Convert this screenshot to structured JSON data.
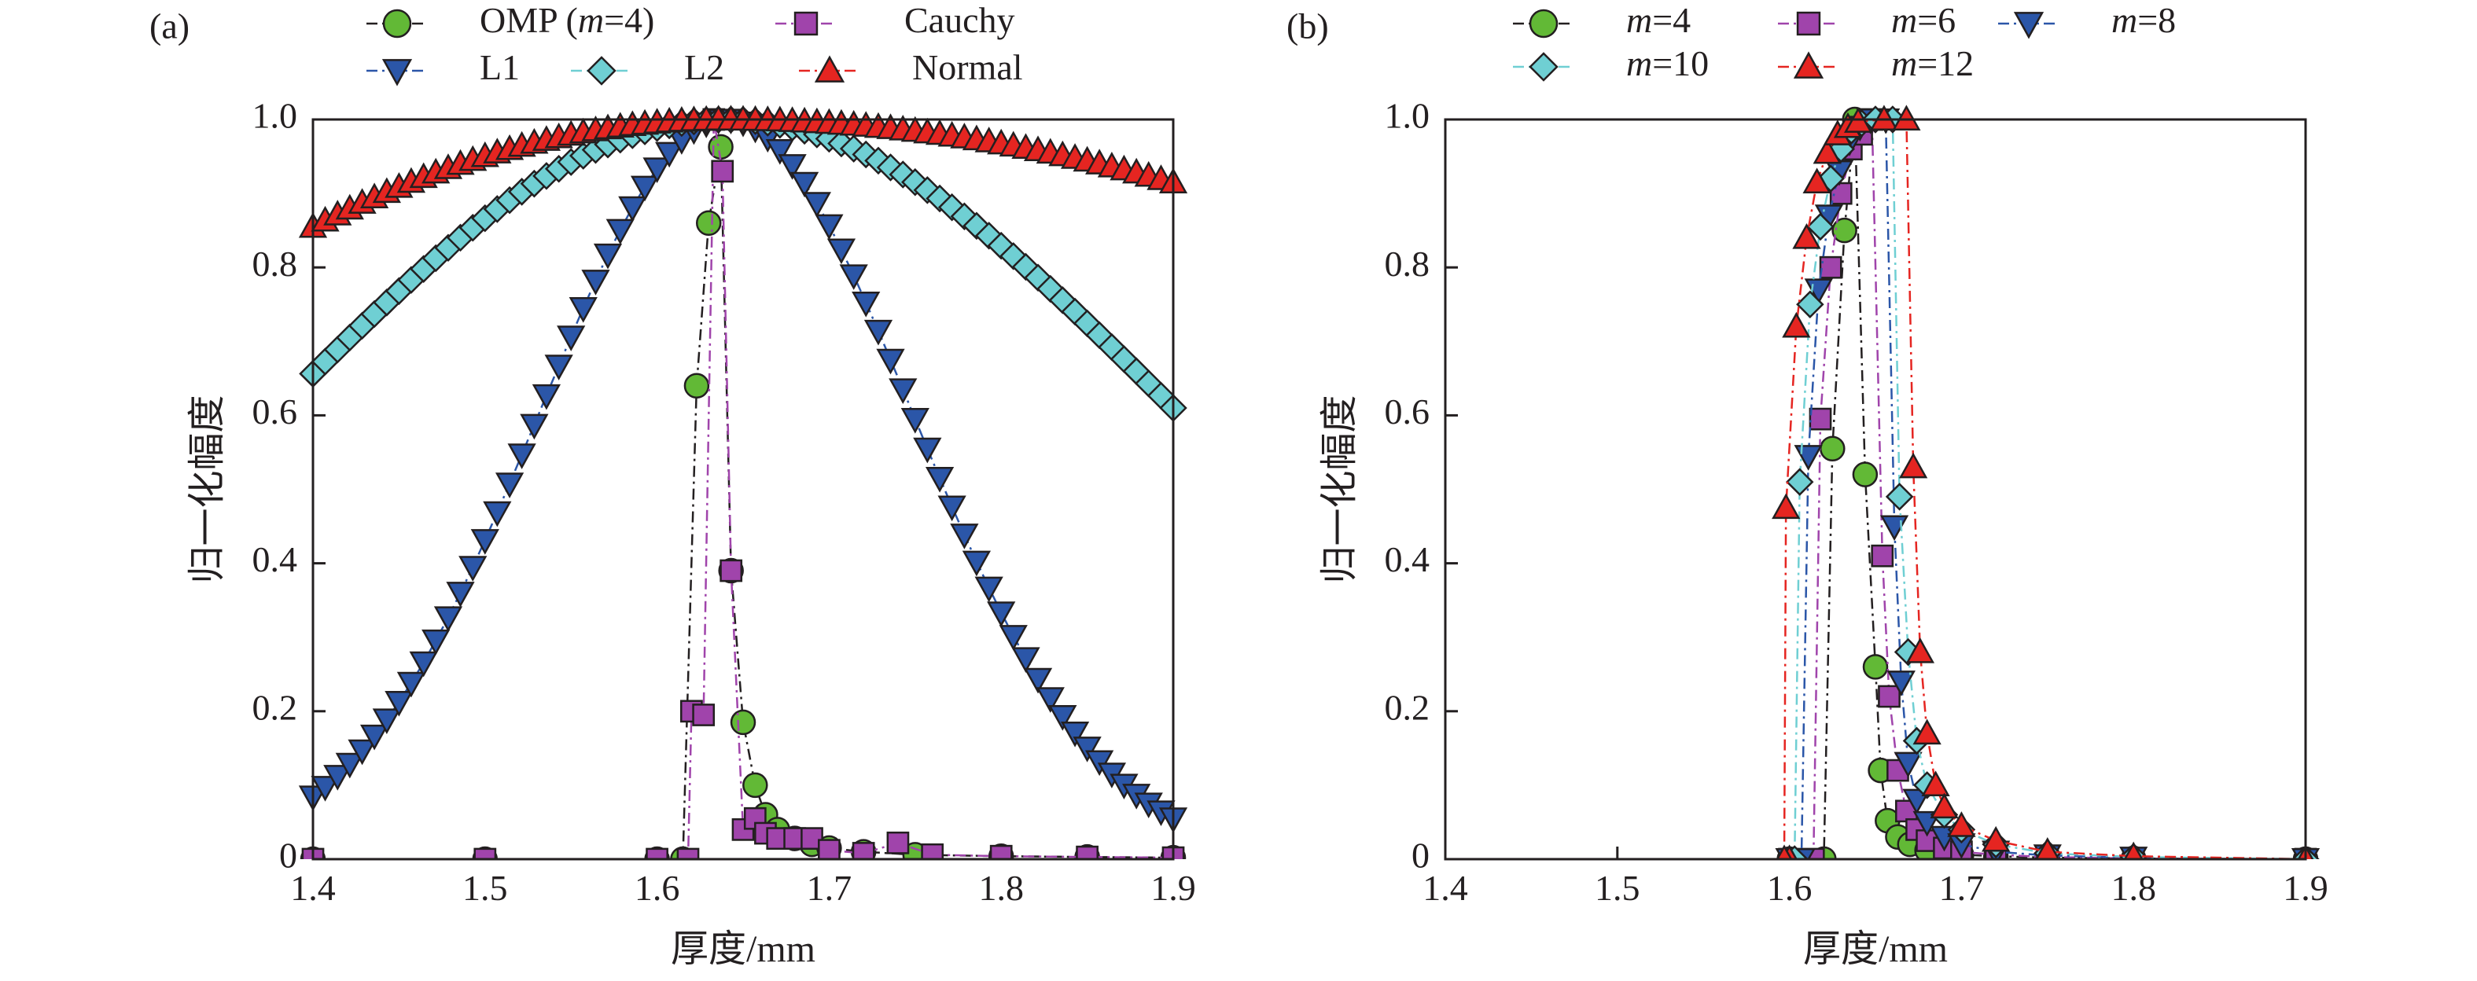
{
  "chart_data": [
    {
      "type": "scatter",
      "panel_label": "(a)",
      "xlabel": "厚度/mm",
      "ylabel": "归一化幅度",
      "xlim": [
        1.4,
        1.9
      ],
      "ylim": [
        0,
        1.0
      ],
      "x_ticks": [
        "1.4",
        "1.5",
        "1.6",
        "1.7",
        "1.8",
        "1.9"
      ],
      "y_ticks": [
        "0",
        "0.2",
        "0.4",
        "0.6",
        "0.8",
        "1.0"
      ],
      "legend_position": "top",
      "series": [
        {
          "name_parts": [
            "OMP (",
            "m",
            "=4)"
          ],
          "marker": "circle",
          "color": "#62b936",
          "line_color": "#231f20",
          "points": [
            [
              1.4,
              0
            ],
            [
              1.5,
              0
            ],
            [
              1.6,
              0
            ],
            [
              1.615,
              0
            ],
            [
              1.623,
              0.64
            ],
            [
              1.63,
              0.86
            ],
            [
              1.637,
              0.963
            ],
            [
              1.643,
              0.39
            ],
            [
              1.65,
              0.185
            ],
            [
              1.657,
              0.1
            ],
            [
              1.663,
              0.06
            ],
            [
              1.67,
              0.04
            ],
            [
              1.68,
              0.028
            ],
            [
              1.69,
              0.02
            ],
            [
              1.7,
              0.015
            ],
            [
              1.72,
              0.01
            ],
            [
              1.75,
              0.006
            ],
            [
              1.8,
              0.004
            ],
            [
              1.85,
              0.003
            ],
            [
              1.9,
              0.002
            ]
          ]
        },
        {
          "name_parts": [
            "Cauchy"
          ],
          "marker": "square",
          "color": "#a044ab",
          "line_color": "#a044ab",
          "points": [
            [
              1.4,
              0
            ],
            [
              1.5,
              0
            ],
            [
              1.6,
              0
            ],
            [
              1.618,
              0
            ],
            [
              1.62,
              0.2
            ],
            [
              1.627,
              0.195
            ],
            [
              1.633,
              1.0
            ],
            [
              1.638,
              0.93
            ],
            [
              1.643,
              0.39
            ],
            [
              1.65,
              0.04
            ],
            [
              1.657,
              0.055
            ],
            [
              1.663,
              0.035
            ],
            [
              1.67,
              0.028
            ],
            [
              1.68,
              0.028
            ],
            [
              1.69,
              0.028
            ],
            [
              1.7,
              0.012
            ],
            [
              1.72,
              0.008
            ],
            [
              1.74,
              0.022
            ],
            [
              1.76,
              0.006
            ],
            [
              1.8,
              0.004
            ],
            [
              1.85,
              0.003
            ],
            [
              1.9,
              0.002
            ]
          ]
        },
        {
          "name_parts": [
            "L1"
          ],
          "marker": "triangle-down",
          "color": "#2b56a8",
          "line_color": "#2b56a8",
          "peak": 1.64,
          "edge_value": 0.055
        },
        {
          "name_parts": [
            "L2"
          ],
          "marker": "diamond",
          "color": "#6fcfd3",
          "line_color": "#6fcfd3",
          "peak": 1.64,
          "edge_value": 0.61
        },
        {
          "name_parts": [
            "Normal"
          ],
          "marker": "triangle-up",
          "color": "#e52521",
          "line_color": "#e52521",
          "peak": 1.64,
          "left_value": 0.855,
          "right_value": 0.915
        }
      ]
    },
    {
      "type": "scatter",
      "panel_label": "(b)",
      "xlabel": "厚度/mm",
      "ylabel": "归一化幅度",
      "xlim": [
        1.4,
        1.9
      ],
      "ylim": [
        0,
        1.0
      ],
      "x_ticks": [
        "1.4",
        "1.5",
        "1.6",
        "1.7",
        "1.8",
        "1.9"
      ],
      "y_ticks": [
        "0",
        "0.2",
        "0.4",
        "0.6",
        "0.8",
        "1.0"
      ],
      "legend_position": "top",
      "series": [
        {
          "name_parts": [
            "m",
            "=4"
          ],
          "marker": "circle",
          "color": "#62b936",
          "line_color": "#231f20",
          "points": [
            [
              1.6,
              0
            ],
            [
              1.62,
              0
            ],
            [
              1.625,
              0.555
            ],
            [
              1.632,
              0.85
            ],
            [
              1.638,
              1.0
            ],
            [
              1.644,
              0.52
            ],
            [
              1.65,
              0.26
            ],
            [
              1.653,
              0.12
            ],
            [
              1.657,
              0.052
            ],
            [
              1.663,
              0.03
            ],
            [
              1.67,
              0.02
            ],
            [
              1.68,
              0.012
            ],
            [
              1.7,
              0.006
            ],
            [
              1.72,
              0.004
            ],
            [
              1.75,
              0.002
            ],
            [
              1.8,
              0.001
            ],
            [
              1.9,
              0
            ]
          ]
        },
        {
          "name_parts": [
            "m",
            "=6"
          ],
          "marker": "square",
          "color": "#a044ab",
          "line_color": "#a044ab",
          "points": [
            [
              1.6,
              0
            ],
            [
              1.614,
              0
            ],
            [
              1.618,
              0.595
            ],
            [
              1.624,
              0.8
            ],
            [
              1.63,
              0.9
            ],
            [
              1.636,
              0.96
            ],
            [
              1.642,
              0.98
            ],
            [
              1.648,
              1.0
            ],
            [
              1.654,
              0.41
            ],
            [
              1.658,
              0.22
            ],
            [
              1.663,
              0.12
            ],
            [
              1.668,
              0.065
            ],
            [
              1.674,
              0.04
            ],
            [
              1.68,
              0.025
            ],
            [
              1.69,
              0.015
            ],
            [
              1.7,
              0.01
            ],
            [
              1.72,
              0.006
            ],
            [
              1.75,
              0.003
            ],
            [
              1.8,
              0.001
            ],
            [
              1.9,
              0
            ]
          ]
        },
        {
          "name_parts": [
            "m",
            "=8"
          ],
          "marker": "triangle-down",
          "color": "#2b56a8",
          "line_color": "#2b56a8",
          "points": [
            [
              1.6,
              0
            ],
            [
              1.607,
              0
            ],
            [
              1.611,
              0.545
            ],
            [
              1.617,
              0.77
            ],
            [
              1.623,
              0.87
            ],
            [
              1.629,
              0.93
            ],
            [
              1.635,
              0.97
            ],
            [
              1.641,
              0.99
            ],
            [
              1.647,
              1.0
            ],
            [
              1.656,
              1.0
            ],
            [
              1.661,
              0.45
            ],
            [
              1.665,
              0.24
            ],
            [
              1.669,
              0.13
            ],
            [
              1.674,
              0.08
            ],
            [
              1.68,
              0.05
            ],
            [
              1.69,
              0.03
            ],
            [
              1.7,
              0.02
            ],
            [
              1.72,
              0.01
            ],
            [
              1.75,
              0.005
            ],
            [
              1.8,
              0.002
            ],
            [
              1.9,
              0
            ]
          ]
        },
        {
          "name_parts": [
            "m",
            "=10"
          ],
          "marker": "diamond",
          "color": "#6fcfd3",
          "line_color": "#6fcfd3",
          "points": [
            [
              1.6,
              0
            ],
            [
              1.603,
              0
            ],
            [
              1.606,
              0.51
            ],
            [
              1.612,
              0.75
            ],
            [
              1.618,
              0.855
            ],
            [
              1.624,
              0.92
            ],
            [
              1.63,
              0.96
            ],
            [
              1.636,
              0.985
            ],
            [
              1.642,
              0.995
            ],
            [
              1.65,
              1.0
            ],
            [
              1.66,
              1.0
            ],
            [
              1.664,
              0.49
            ],
            [
              1.669,
              0.28
            ],
            [
              1.674,
              0.16
            ],
            [
              1.68,
              0.1
            ],
            [
              1.69,
              0.06
            ],
            [
              1.7,
              0.04
            ],
            [
              1.72,
              0.02
            ],
            [
              1.75,
              0.008
            ],
            [
              1.8,
              0.003
            ],
            [
              1.9,
              0
            ]
          ]
        },
        {
          "name_parts": [
            "m",
            "=12"
          ],
          "marker": "triangle-up",
          "color": "#e52521",
          "line_color": "#e52521",
          "points": [
            [
              1.6,
              0
            ],
            [
              1.597,
              0
            ],
            [
              1.598,
              0.475
            ],
            [
              1.604,
              0.72
            ],
            [
              1.61,
              0.84
            ],
            [
              1.616,
              0.915
            ],
            [
              1.622,
              0.955
            ],
            [
              1.628,
              0.98
            ],
            [
              1.634,
              0.99
            ],
            [
              1.64,
              0.997
            ],
            [
              1.655,
              1.0
            ],
            [
              1.668,
              1.0
            ],
            [
              1.672,
              0.53
            ],
            [
              1.676,
              0.28
            ],
            [
              1.68,
              0.17
            ],
            [
              1.685,
              0.1
            ],
            [
              1.69,
              0.07
            ],
            [
              1.7,
              0.045
            ],
            [
              1.72,
              0.025
            ],
            [
              1.75,
              0.01
            ],
            [
              1.8,
              0.004
            ],
            [
              1.9,
              0
            ]
          ]
        }
      ]
    }
  ]
}
